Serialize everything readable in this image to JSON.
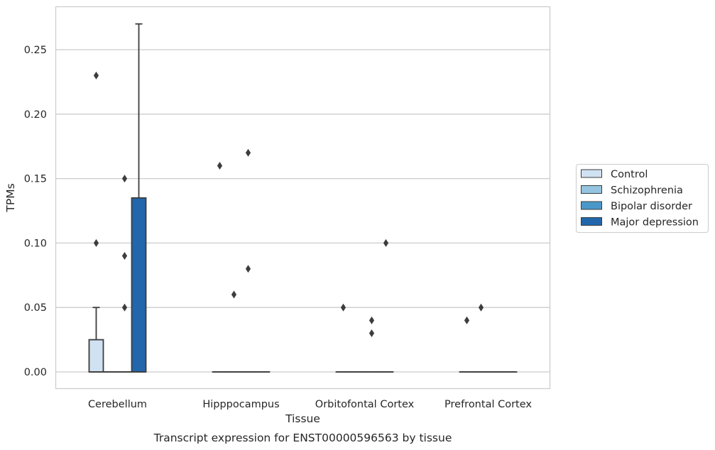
{
  "chart_data": {
    "type": "box",
    "caption": "Transcript expression for ENST00000596563 by tissue",
    "xlabel": "Tissue",
    "ylabel": "TPMs",
    "ylim": [
      -0.013,
      0.28
    ],
    "yticks": [
      "0.00",
      "0.05",
      "0.10",
      "0.15",
      "0.20",
      "0.25"
    ],
    "ytick_values": [
      0,
      0.05,
      0.1,
      0.15,
      0.2,
      0.25
    ],
    "grid": true,
    "legend_position": "right",
    "categories": [
      "Cerebellum",
      "Hipppocampus",
      "Orbitofontal Cortex",
      "Prefrontal Cortex"
    ],
    "series": [
      {
        "name": "Control",
        "color": "#d0e1f2",
        "boxes": [
          {
            "q1": 0,
            "median": 0,
            "q3": 0.025,
            "whisker_low": 0,
            "whisker_high": 0.05,
            "outliers": [
              0.23,
              0.1
            ]
          },
          {
            "q1": 0,
            "median": 0,
            "q3": 0,
            "whisker_low": 0,
            "whisker_high": 0,
            "outliers": [
              0.16
            ]
          },
          {
            "q1": 0,
            "median": 0,
            "q3": 0,
            "whisker_low": 0,
            "whisker_high": 0,
            "outliers": [
              0.05
            ]
          },
          {
            "q1": 0,
            "median": 0,
            "q3": 0,
            "whisker_low": 0,
            "whisker_high": 0,
            "outliers": [
              0.04
            ]
          }
        ]
      },
      {
        "name": "Schizophrenia",
        "color": "#94c4df",
        "boxes": [
          {
            "q1": 0,
            "median": 0,
            "q3": 0,
            "whisker_low": 0,
            "whisker_high": 0,
            "outliers": []
          },
          {
            "q1": 0,
            "median": 0,
            "q3": 0,
            "whisker_low": 0,
            "whisker_high": 0,
            "outliers": [
              0.06
            ]
          },
          {
            "q1": 0,
            "median": 0,
            "q3": 0,
            "whisker_low": 0,
            "whisker_high": 0,
            "outliers": []
          },
          {
            "q1": 0,
            "median": 0,
            "q3": 0,
            "whisker_low": 0,
            "whisker_high": 0,
            "outliers": [
              0.05
            ]
          }
        ]
      },
      {
        "name": "Bipolar disorder",
        "color": "#4a98c9",
        "boxes": [
          {
            "q1": 0,
            "median": 0,
            "q3": 0,
            "whisker_low": 0,
            "whisker_high": 0,
            "outliers": [
              0.15,
              0.09,
              0.05
            ]
          },
          {
            "q1": 0,
            "median": 0,
            "q3": 0,
            "whisker_low": 0,
            "whisker_high": 0,
            "outliers": [
              0.17,
              0.08
            ]
          },
          {
            "q1": 0,
            "median": 0,
            "q3": 0,
            "whisker_low": 0,
            "whisker_high": 0,
            "outliers": [
              0.04,
              0.03
            ]
          },
          {
            "q1": 0,
            "median": 0,
            "q3": 0,
            "whisker_low": 0,
            "whisker_high": 0,
            "outliers": []
          }
        ]
      },
      {
        "name": "Major depression",
        "color": "#2266ac",
        "boxes": [
          {
            "q1": 0,
            "median": 0,
            "q3": 0.135,
            "whisker_low": 0,
            "whisker_high": 0.27,
            "outliers": []
          },
          {
            "q1": 0,
            "median": 0,
            "q3": 0,
            "whisker_low": 0,
            "whisker_high": 0,
            "outliers": []
          },
          {
            "q1": 0,
            "median": 0,
            "q3": 0,
            "whisker_low": 0,
            "whisker_high": 0,
            "outliers": [
              0.1
            ]
          },
          {
            "q1": 0,
            "median": 0,
            "q3": 0,
            "whisker_low": 0,
            "whisker_high": 0,
            "outliers": []
          }
        ]
      }
    ]
  }
}
